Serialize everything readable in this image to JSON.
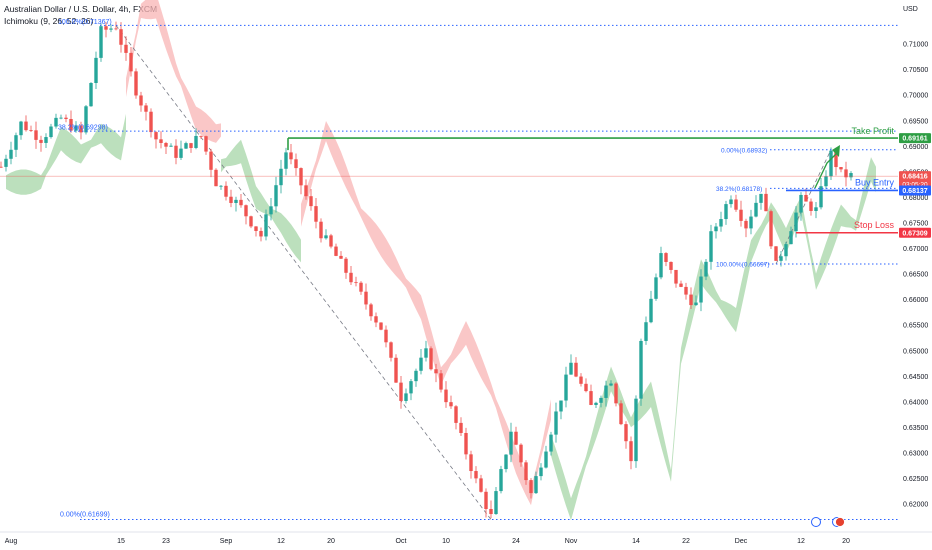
{
  "header": {
    "symbol_title": "Australian Dollar / U.S. Dollar, 4h, FXCM",
    "indicator": "Ichimoku (9, 26, 52, 26)"
  },
  "colors": {
    "bull": "#26a69a",
    "bear": "#ef5350",
    "cloud_bull": "#a5d6a7",
    "cloud_bear": "#f8b4b4",
    "fib": "#2962ff",
    "take_profit": "#2e9e44",
    "buy_entry": "#2962ff",
    "stop_loss": "#f23645",
    "arrow": "#2e9e44"
  },
  "chart_data": {
    "type": "candlestick",
    "currency_label": "USD",
    "ylim": [
      0.6165,
      0.7155
    ],
    "y_ticks": [
      "0.71000",
      "0.70500",
      "0.70000",
      "0.69500",
      "0.69000",
      "0.68500",
      "0.68000",
      "0.67500",
      "0.67000",
      "0.66500",
      "0.66000",
      "0.65500",
      "0.65000",
      "0.64500",
      "0.64000",
      "0.63500",
      "0.63000",
      "0.62500",
      "0.62000"
    ],
    "y_tick_values": [
      0.71,
      0.705,
      0.7,
      0.695,
      0.69,
      0.685,
      0.68,
      0.675,
      0.67,
      0.665,
      0.66,
      0.655,
      0.65,
      0.645,
      0.64,
      0.635,
      0.63,
      0.625,
      0.62
    ],
    "x_ticks": [
      "Aug",
      "15",
      "23",
      "Sep",
      "12",
      "20",
      "Oct",
      "10",
      "24",
      "Nov",
      "14",
      "22",
      "Dec",
      "12",
      "20"
    ],
    "x_tick_index": [
      2,
      24,
      33,
      45,
      56,
      66,
      80,
      89,
      103,
      114,
      127,
      137,
      148,
      160,
      169
    ],
    "bar_count": 180,
    "path": [
      [
        0,
        0.686
      ],
      [
        4,
        0.6945
      ],
      [
        8,
        0.6915
      ],
      [
        12,
        0.6955
      ],
      [
        16,
        0.6925
      ],
      [
        20,
        0.7125
      ],
      [
        23,
        0.7135
      ],
      [
        27,
        0.701
      ],
      [
        31,
        0.6915
      ],
      [
        35,
        0.6885
      ],
      [
        40,
        0.692
      ],
      [
        43,
        0.683
      ],
      [
        48,
        0.678
      ],
      [
        52,
        0.6725
      ],
      [
        57,
        0.689
      ],
      [
        60,
        0.6825
      ],
      [
        64,
        0.673
      ],
      [
        70,
        0.664
      ],
      [
        76,
        0.6545
      ],
      [
        80,
        0.641
      ],
      [
        85,
        0.6495
      ],
      [
        90,
        0.6385
      ],
      [
        95,
        0.6245
      ],
      [
        98,
        0.6175
      ],
      [
        102,
        0.6345
      ],
      [
        106,
        0.622
      ],
      [
        110,
        0.6345
      ],
      [
        114,
        0.6475
      ],
      [
        118,
        0.639
      ],
      [
        122,
        0.6445
      ],
      [
        126,
        0.6285
      ],
      [
        128,
        0.652
      ],
      [
        132,
        0.6685
      ],
      [
        136,
        0.662
      ],
      [
        139,
        0.659
      ],
      [
        142,
        0.6725
      ],
      [
        146,
        0.6805
      ],
      [
        149,
        0.6745
      ],
      [
        152,
        0.6815
      ],
      [
        155,
        0.6665
      ],
      [
        160,
        0.6795
      ],
      [
        163,
        0.6775
      ],
      [
        166,
        0.6885
      ],
      [
        168,
        0.6845
      ],
      [
        170,
        0.6842
      ]
    ],
    "ichimoku_cloud": [
      {
        "from": 1,
        "to": 25,
        "color": "green"
      },
      {
        "from": 25,
        "to": 44,
        "color": "red"
      },
      {
        "from": 44,
        "to": 60,
        "color": "green"
      },
      {
        "from": 60,
        "to": 110,
        "color": "red"
      },
      {
        "from": 110,
        "to": 126,
        "color": "green"
      },
      {
        "from": 126,
        "to": 175,
        "color": "green"
      }
    ],
    "fib_high": {
      "price": 0.71367,
      "label": "100.0%(0.71367)"
    },
    "fib_mid": {
      "price": 0.69298,
      "label": "38.2%(0.69298)"
    },
    "fib_low": {
      "price": 0.61699,
      "label": "0.00%(0.61699)"
    },
    "fib2_top": {
      "price": 0.68932,
      "label": "0.00%(0.68932)"
    },
    "fib2_mid": {
      "price": 0.68178,
      "label": "38.2%(0.68178)"
    },
    "fib2_low": {
      "price": 0.66697,
      "label": "100.00%(0.66697)"
    },
    "take_profit": {
      "price": 0.69161,
      "label": "Take Profit",
      "badge": "0.69161"
    },
    "buy_entry": {
      "price": 0.68137,
      "label": "Buy Entry",
      "badge": "0.68137"
    },
    "stop_loss": {
      "price": 0.67309,
      "label": "Stop Loss",
      "badge": "0.67309"
    },
    "current_price": {
      "price": 0.68416,
      "badge": "0.68416",
      "countdown": "03:05:20"
    }
  }
}
